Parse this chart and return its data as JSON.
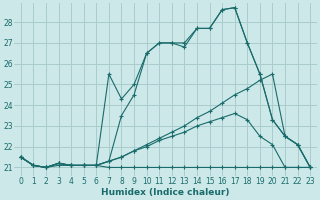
{
  "xlabel": "Humidex (Indice chaleur)",
  "bg_color": "#cce8e8",
  "grid_color": "#aacccc",
  "line_color": "#1a6b6b",
  "xlim": [
    -0.5,
    23.5
  ],
  "ylim": [
    20.6,
    28.9
  ],
  "xticks": [
    0,
    1,
    2,
    3,
    4,
    5,
    6,
    7,
    8,
    9,
    10,
    11,
    12,
    13,
    14,
    15,
    16,
    17,
    18,
    19,
    20,
    21,
    22,
    23
  ],
  "yticks": [
    21,
    22,
    23,
    24,
    25,
    26,
    27,
    28
  ],
  "s1": [
    21.5,
    21.1,
    21.0,
    21.1,
    21.1,
    21.1,
    21.1,
    21.0,
    21.0,
    21.0,
    21.0,
    21.0,
    21.0,
    21.0,
    21.0,
    21.0,
    21.0,
    21.0,
    21.0,
    21.0,
    21.0,
    21.0,
    21.0,
    21.0
  ],
  "s2": [
    21.5,
    21.1,
    21.0,
    21.2,
    21.1,
    21.1,
    21.1,
    21.3,
    23.5,
    24.5,
    26.5,
    27.0,
    27.0,
    26.8,
    27.7,
    27.7,
    28.6,
    28.7,
    27.0,
    25.5,
    23.3,
    22.5,
    22.1,
    21.0
  ],
  "s3": [
    21.5,
    21.1,
    21.0,
    21.2,
    21.1,
    21.1,
    21.1,
    25.5,
    24.3,
    25.0,
    26.5,
    27.0,
    27.0,
    27.0,
    27.7,
    27.7,
    28.6,
    28.7,
    27.0,
    25.5,
    23.3,
    22.5,
    22.1,
    21.0
  ],
  "s4": [
    21.5,
    21.1,
    21.0,
    21.2,
    21.1,
    21.1,
    21.1,
    21.3,
    21.5,
    21.8,
    22.0,
    22.3,
    22.5,
    22.7,
    23.0,
    23.2,
    23.4,
    23.6,
    23.3,
    22.5,
    22.1,
    21.0,
    21.0,
    21.0
  ],
  "s5": [
    21.5,
    21.1,
    21.0,
    21.2,
    21.1,
    21.1,
    21.1,
    21.3,
    21.5,
    21.8,
    22.1,
    22.4,
    22.7,
    23.0,
    23.4,
    23.7,
    24.1,
    24.5,
    24.8,
    25.2,
    25.5,
    22.5,
    22.1,
    21.0
  ]
}
